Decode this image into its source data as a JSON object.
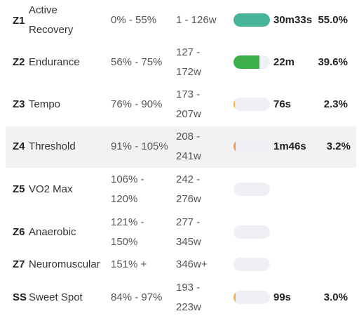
{
  "zones": [
    {
      "zone": "Z1",
      "name_l1": "Active",
      "name_l2": "Recovery",
      "pct_l1": "0% - 55%",
      "pct_l2": "",
      "watts_l1": "1 - 126w",
      "watts_l2": "",
      "time": "30m33s",
      "share": "55.0%",
      "fill": 1.0,
      "color": "#48b49a"
    },
    {
      "zone": "Z2",
      "name_l1": "Endurance",
      "name_l2": "",
      "pct_l1": "56% - 75%",
      "pct_l2": "",
      "watts_l1": "127 -",
      "watts_l2": "172w",
      "time": "22m",
      "share": "39.6%",
      "fill": 0.72,
      "color": "#3db04a"
    },
    {
      "zone": "Z3",
      "name_l1": "Tempo",
      "name_l2": "",
      "pct_l1": "76% - 90%",
      "pct_l2": "",
      "watts_l1": "173 -",
      "watts_l2": "207w",
      "time": "76s",
      "share": "2.3%",
      "fill": 0.04,
      "color": "#f2b24a"
    },
    {
      "zone": "Z4",
      "name_l1": "Threshold",
      "name_l2": "",
      "pct_l1": "91% - 105%",
      "pct_l2": "",
      "watts_l1": "208 -",
      "watts_l2": "241w",
      "time": "1m46s",
      "share": "3.2%",
      "fill": 0.06,
      "color": "#ef9a4a"
    },
    {
      "zone": "Z5",
      "name_l1": "VO2 Max",
      "name_l2": "",
      "pct_l1": "106% -",
      "pct_l2": "120%",
      "watts_l1": "242 -",
      "watts_l2": "276w",
      "time": "",
      "share": "",
      "fill": 0,
      "color": "#e8734a"
    },
    {
      "zone": "Z6",
      "name_l1": "Anaerobic",
      "name_l2": "",
      "pct_l1": "121% -",
      "pct_l2": "150%",
      "watts_l1": "277 -",
      "watts_l2": "345w",
      "time": "",
      "share": "",
      "fill": 0,
      "color": "#d9534f"
    },
    {
      "zone": "Z7",
      "name_l1": "Neuromuscular",
      "name_l2": "",
      "pct_l1": "151% +",
      "pct_l2": "",
      "watts_l1": "346w+",
      "watts_l2": "",
      "time": "",
      "share": "",
      "fill": 0,
      "color": "#b03a8a"
    },
    {
      "zone": "SS",
      "name_l1": "Sweet Spot",
      "name_l2": "",
      "pct_l1": "84% - 97%",
      "pct_l2": "",
      "watts_l1": "193 -",
      "watts_l2": "223w",
      "time": "99s",
      "share": "3.0%",
      "fill": 0.05,
      "color": "#f2b24a"
    }
  ]
}
